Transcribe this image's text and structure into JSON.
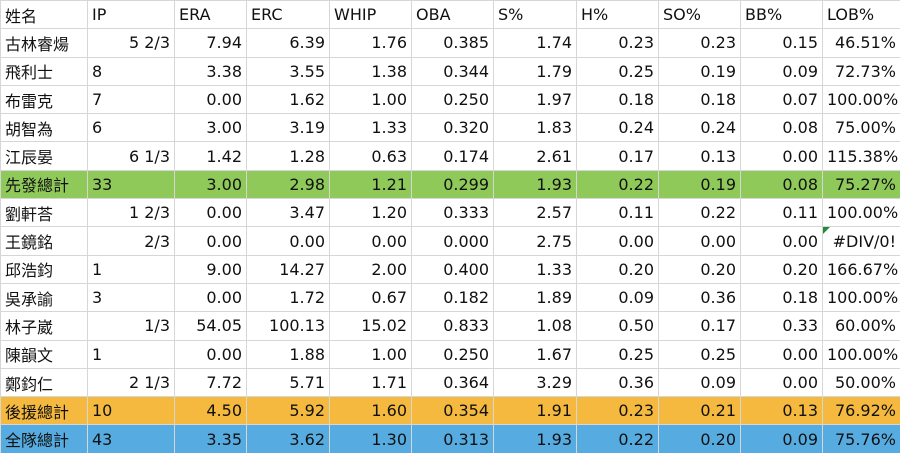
{
  "table": {
    "header": [
      "姓名",
      "IP",
      "ERA",
      "ERC",
      "WHIP",
      "OBA",
      "S%",
      "H%",
      "SO%",
      "BB%",
      "LOB%"
    ],
    "rows": [
      [
        "古林睿煬",
        "5 2/3",
        "7.94",
        "6.39",
        "1.76",
        "0.385",
        "1.74",
        "0.23",
        "0.23",
        "0.15",
        "46.51%"
      ],
      [
        "飛利士",
        "8",
        "3.38",
        "3.55",
        "1.38",
        "0.344",
        "1.79",
        "0.25",
        "0.19",
        "0.09",
        "72.73%"
      ],
      [
        "布雷克",
        "7",
        "0.00",
        "1.62",
        "1.00",
        "0.250",
        "1.97",
        "0.18",
        "0.18",
        "0.07",
        "100.00%"
      ],
      [
        "胡智為",
        "6",
        "3.00",
        "3.19",
        "1.33",
        "0.320",
        "1.83",
        "0.24",
        "0.24",
        "0.08",
        "75.00%"
      ],
      [
        "江辰晏",
        "6 1/3",
        "1.42",
        "1.28",
        "0.63",
        "0.174",
        "2.61",
        "0.17",
        "0.13",
        "0.00",
        "115.38%"
      ],
      [
        "先發總計",
        "33",
        "3.00",
        "2.98",
        "1.21",
        "0.299",
        "1.93",
        "0.22",
        "0.19",
        "0.08",
        "75.27%"
      ],
      [
        "劉軒荅",
        "1 2/3",
        "0.00",
        "3.47",
        "1.20",
        "0.333",
        "2.57",
        "0.11",
        "0.22",
        "0.11",
        "100.00%"
      ],
      [
        "王鏡銘",
        "2/3",
        "0.00",
        "0.00",
        "0.00",
        "0.000",
        "2.75",
        "0.00",
        "0.00",
        "0.00",
        "#DIV/0!"
      ],
      [
        "邱浩鈞",
        "1",
        "9.00",
        "14.27",
        "2.00",
        "0.400",
        "1.33",
        "0.20",
        "0.20",
        "0.20",
        "166.67%"
      ],
      [
        "吳承諭",
        "3",
        "0.00",
        "1.72",
        "0.67",
        "0.182",
        "1.89",
        "0.09",
        "0.36",
        "0.18",
        "100.00%"
      ],
      [
        "林子崴",
        "1/3",
        "54.05",
        "100.13",
        "15.02",
        "0.833",
        "1.08",
        "0.50",
        "0.17",
        "0.33",
        "60.00%"
      ],
      [
        "陳韻文",
        "1",
        "0.00",
        "1.88",
        "1.00",
        "0.250",
        "1.67",
        "0.25",
        "0.25",
        "0.00",
        "100.00%"
      ],
      [
        "鄭鈞仁",
        "2 1/3",
        "7.72",
        "5.71",
        "1.71",
        "0.364",
        "3.29",
        "0.36",
        "0.09",
        "0.00",
        "50.00%"
      ],
      [
        "後援總計",
        "10",
        "4.50",
        "5.92",
        "1.60",
        "0.354",
        "1.91",
        "0.23",
        "0.21",
        "0.13",
        "76.92%"
      ],
      [
        "全隊總計",
        "43",
        "3.35",
        "3.62",
        "1.30",
        "0.313",
        "1.93",
        "0.22",
        "0.20",
        "0.09",
        "75.76%"
      ]
    ]
  }
}
